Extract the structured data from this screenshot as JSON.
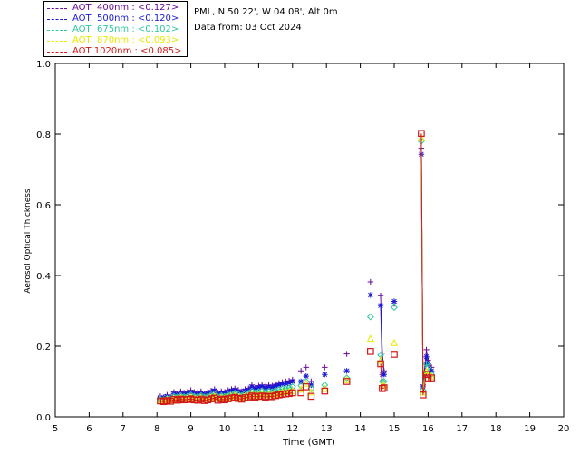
{
  "header": {
    "station": "PML, N 50 22', W 04 08', Alt 0m",
    "date_line": "Data from: 03 Oct 2024"
  },
  "legend": [
    {
      "label": "AOT  400nm : <0.127>",
      "color": "#6a0a9a"
    },
    {
      "label": "AOT  500nm : <0.120>",
      "color": "#1a1ad6"
    },
    {
      "label": "AOT  675nm : <0.102>",
      "color": "#2ec7a0"
    },
    {
      "label": "AOT  870nm : <0.093>",
      "color": "#e8e800"
    },
    {
      "label": "AOT 1020nm : <0.085>",
      "color": "#d01818"
    }
  ],
  "chart_data": {
    "type": "scatter",
    "title": "",
    "xlabel": "Time (GMT)",
    "ylabel": "Aerosol Optical Thickness",
    "xlim": [
      5,
      20
    ],
    "ylim": [
      0.0,
      1.0
    ],
    "xticks": [
      5,
      6,
      7,
      8,
      9,
      10,
      11,
      12,
      13,
      14,
      15,
      16,
      17,
      18,
      19,
      20
    ],
    "yticks": [
      "0.0",
      "0.2",
      "0.4",
      "0.6",
      "0.8",
      "1.0"
    ],
    "x": [
      8.1,
      8.2,
      8.3,
      8.4,
      8.5,
      8.6,
      8.7,
      8.8,
      8.9,
      9.0,
      9.1,
      9.2,
      9.3,
      9.4,
      9.5,
      9.6,
      9.7,
      9.8,
      9.9,
      10.0,
      10.1,
      10.2,
      10.3,
      10.4,
      10.5,
      10.6,
      10.7,
      10.8,
      10.9,
      11.0,
      11.1,
      11.2,
      11.3,
      11.4,
      11.5,
      11.6,
      11.7,
      11.8,
      11.9,
      12.0,
      12.25,
      12.4,
      12.55,
      12.95,
      13.6,
      14.3,
      14.6,
      14.65,
      14.7,
      15.0,
      15.8,
      15.85,
      15.95,
      16.0,
      16.1
    ],
    "series": [
      {
        "name": "AOT  400nm",
        "marker": "plus",
        "color": "#6a0a9a",
        "values": [
          0.058,
          0.055,
          0.062,
          0.056,
          0.07,
          0.066,
          0.072,
          0.068,
          0.07,
          0.075,
          0.07,
          0.068,
          0.072,
          0.066,
          0.07,
          0.074,
          0.078,
          0.068,
          0.072,
          0.07,
          0.075,
          0.078,
          0.08,
          0.076,
          0.072,
          0.078,
          0.08,
          0.09,
          0.082,
          0.088,
          0.09,
          0.085,
          0.09,
          0.088,
          0.092,
          0.095,
          0.098,
          0.1,
          0.102,
          0.105,
          0.13,
          0.14,
          0.1,
          0.14,
          0.178,
          0.382,
          0.343,
          0.18,
          0.13,
          0.32,
          0.76,
          0.09,
          0.19,
          0.16,
          0.14
        ]
      },
      {
        "name": "AOT  500nm",
        "marker": "star",
        "color": "#1a1ad6",
        "values": [
          0.055,
          0.052,
          0.058,
          0.053,
          0.066,
          0.062,
          0.068,
          0.064,
          0.066,
          0.07,
          0.066,
          0.064,
          0.068,
          0.062,
          0.066,
          0.07,
          0.074,
          0.064,
          0.068,
          0.066,
          0.07,
          0.074,
          0.076,
          0.072,
          0.068,
          0.074,
          0.076,
          0.085,
          0.078,
          0.083,
          0.086,
          0.08,
          0.085,
          0.083,
          0.087,
          0.09,
          0.093,
          0.094,
          0.096,
          0.1,
          0.1,
          0.115,
          0.09,
          0.12,
          0.13,
          0.345,
          0.315,
          0.12,
          0.12,
          0.327,
          0.743,
          0.085,
          0.17,
          0.15,
          0.13
        ]
      },
      {
        "name": "AOT  675nm",
        "marker": "diamond",
        "color": "#2ec7a0",
        "values": [
          0.05,
          0.048,
          0.052,
          0.05,
          0.058,
          0.056,
          0.06,
          0.057,
          0.058,
          0.062,
          0.058,
          0.057,
          0.06,
          0.056,
          0.058,
          0.062,
          0.065,
          0.057,
          0.06,
          0.058,
          0.062,
          0.065,
          0.067,
          0.064,
          0.06,
          0.066,
          0.067,
          0.073,
          0.068,
          0.071,
          0.073,
          0.069,
          0.072,
          0.071,
          0.074,
          0.077,
          0.079,
          0.08,
          0.082,
          0.085,
          0.088,
          0.1,
          0.08,
          0.09,
          0.11,
          0.283,
          0.175,
          0.1,
          0.1,
          0.31,
          0.78,
          0.075,
          0.15,
          0.14,
          0.12
        ]
      },
      {
        "name": "AOT  870nm",
        "marker": "triangle",
        "color": "#e8e800",
        "values": [
          0.047,
          0.045,
          0.049,
          0.047,
          0.053,
          0.051,
          0.055,
          0.052,
          0.053,
          0.056,
          0.053,
          0.052,
          0.055,
          0.051,
          0.053,
          0.056,
          0.058,
          0.052,
          0.055,
          0.053,
          0.056,
          0.058,
          0.06,
          0.057,
          0.055,
          0.059,
          0.06,
          0.065,
          0.061,
          0.063,
          0.065,
          0.062,
          0.064,
          0.063,
          0.066,
          0.068,
          0.07,
          0.071,
          0.072,
          0.074,
          0.078,
          0.095,
          0.07,
          0.08,
          0.105,
          0.222,
          0.16,
          0.09,
          0.09,
          0.21,
          0.79,
          0.07,
          0.13,
          0.12,
          0.115
        ]
      },
      {
        "name": "AOT 1020nm",
        "marker": "square",
        "color": "#d01818",
        "values": [
          0.045,
          0.043,
          0.046,
          0.044,
          0.049,
          0.047,
          0.05,
          0.048,
          0.049,
          0.051,
          0.048,
          0.047,
          0.05,
          0.046,
          0.048,
          0.051,
          0.053,
          0.047,
          0.05,
          0.048,
          0.051,
          0.053,
          0.055,
          0.052,
          0.05,
          0.054,
          0.055,
          0.059,
          0.056,
          0.058,
          0.059,
          0.056,
          0.058,
          0.057,
          0.06,
          0.062,
          0.064,
          0.065,
          0.066,
          0.068,
          0.068,
          0.085,
          0.058,
          0.073,
          0.1,
          0.185,
          0.15,
          0.08,
          0.082,
          0.177,
          0.802,
          0.062,
          0.12,
          0.11,
          0.11
        ]
      }
    ]
  }
}
